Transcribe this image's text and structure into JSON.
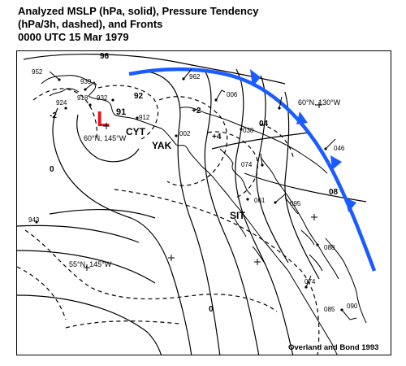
{
  "title": {
    "line1": "Analyzed MSLP (hPa, solid), Pressure Tendency",
    "line2": "(hPa/3h, dashed), and Fronts",
    "line3": "0000 UTC  15 Mar 1979"
  },
  "map": {
    "low_symbol": "L",
    "low_value": "91",
    "station_labels": [
      "CYT",
      "YAK",
      "SIT"
    ],
    "coord_labels": [
      "60°N, 145°W",
      "60°N, 130°W",
      "55°N, 145°W"
    ],
    "isobar_labels": [
      "96",
      "92",
      "08",
      "04"
    ],
    "tendency_labels": [
      "-2",
      "0",
      "+2",
      "+4",
      "0"
    ],
    "station_values": [
      "952",
      "939",
      "924",
      "918",
      "932",
      "912",
      "962",
      "006",
      "002",
      "038",
      "074",
      "061",
      "095",
      "046",
      "088",
      "085",
      "074",
      "090",
      "943"
    ],
    "credit": "Overland and Bond 1993",
    "colors": {
      "front": "#1a5cff",
      "low": "#e8101a",
      "lines": "#000000"
    }
  }
}
